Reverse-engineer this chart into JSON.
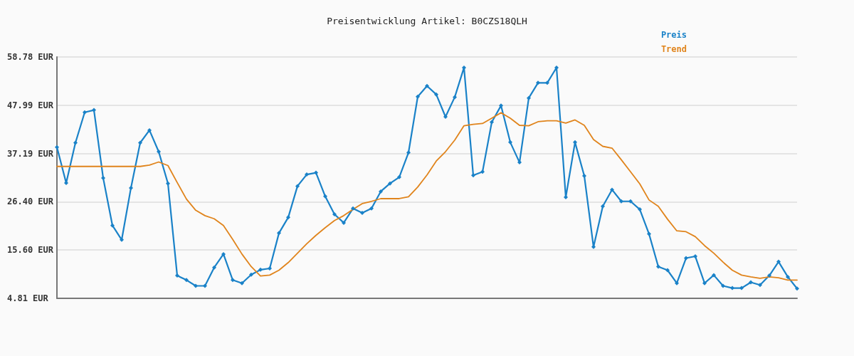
{
  "chart_data": {
    "type": "line",
    "title": "Preisentwicklung Artikel: B0CZS18QLH",
    "categories": [
      null,
      null,
      null,
      null,
      null,
      null,
      null,
      null,
      null,
      null,
      null,
      null,
      null,
      null,
      null,
      null,
      null,
      null,
      null,
      null,
      null,
      null,
      null,
      null,
      null,
      null,
      null,
      null,
      null,
      null,
      null,
      null,
      null,
      null,
      null,
      null,
      null,
      null,
      null,
      null,
      null,
      null,
      null,
      null,
      null,
      null,
      null,
      null,
      null,
      null,
      null,
      null,
      null,
      null,
      null,
      null,
      null,
      null,
      null,
      null,
      null,
      null,
      null,
      null,
      null,
      null,
      null,
      null,
      null,
      null,
      null,
      null,
      null,
      null,
      null,
      null,
      null,
      null,
      null,
      null,
      null
    ],
    "series": [
      {
        "name": "Preis",
        "color": "#1a82c8",
        "values": [
          38.6,
          30.6,
          39.6,
          46.4,
          46.9,
          31.7,
          21.1,
          17.9,
          29.5,
          39.6,
          42.4,
          37.6,
          30.5,
          9.9,
          8.9,
          7.6,
          7.6,
          11.7,
          14.7,
          8.9,
          8.2,
          10.1,
          11.2,
          11.5,
          19.4,
          22.9,
          29.9,
          32.5,
          32.9,
          27.6,
          23.6,
          21.7,
          24.9,
          23.9,
          24.9,
          28.7,
          30.5,
          31.9,
          37.4,
          49.9,
          52.3,
          50.4,
          45.4,
          49.8,
          56.4,
          32.3,
          33.1,
          44.2,
          47.9,
          39.7,
          35.2,
          49.6,
          53.0,
          53.0,
          56.4,
          27.4,
          39.7,
          32.2,
          16.3,
          25.4,
          29.1,
          26.5,
          26.5,
          24.7,
          19.2,
          11.9,
          11.1,
          8.2,
          13.8,
          14.2,
          8.2,
          10.0,
          7.6,
          7.1,
          7.1,
          8.4,
          7.8,
          9.9,
          13.0,
          9.6,
          7.0
        ]
      },
      {
        "name": "Trend",
        "color": "#e0841c",
        "marker": "none",
        "values": [
          34.3,
          34.3,
          34.3,
          34.3,
          34.3,
          34.3,
          34.3,
          34.3,
          34.3,
          34.3,
          34.6,
          35.3,
          34.5,
          30.7,
          27.0,
          24.5,
          23.3,
          22.6,
          21.1,
          18.0,
          14.7,
          11.9,
          9.8,
          10.0,
          11.1,
          12.8,
          14.9,
          17.0,
          18.9,
          20.6,
          22.2,
          23.3,
          24.7,
          26.0,
          26.5,
          27.1,
          27.1,
          27.1,
          27.5,
          29.7,
          32.4,
          35.5,
          37.6,
          40.2,
          43.4,
          43.7,
          43.9,
          45.1,
          46.3,
          45.1,
          43.5,
          43.4,
          44.3,
          44.5,
          44.5,
          44.0,
          44.7,
          43.5,
          40.3,
          38.8,
          38.4,
          35.8,
          33.1,
          30.4,
          26.8,
          25.4,
          22.5,
          19.9,
          19.7,
          18.6,
          16.6,
          14.9,
          12.9,
          11.1,
          10.0,
          9.6,
          9.3,
          9.6,
          9.4,
          8.9,
          8.9
        ]
      }
    ],
    "ylim": [
      4.81,
      58.78
    ],
    "yticks": [
      {
        "value": 4.81,
        "label": "4.81 EUR"
      },
      {
        "value": 15.6,
        "label": "15.60 EUR"
      },
      {
        "value": 26.4,
        "label": "26.40 EUR"
      },
      {
        "value": 37.19,
        "label": "37.19 EUR"
      },
      {
        "value": 47.99,
        "label": "47.99 EUR"
      },
      {
        "value": 58.78,
        "label": "58.78 EUR"
      }
    ],
    "grid": "y",
    "legend": "top right",
    "tick_labels": "y",
    "marker": "diamond",
    "line_style": "solid"
  }
}
